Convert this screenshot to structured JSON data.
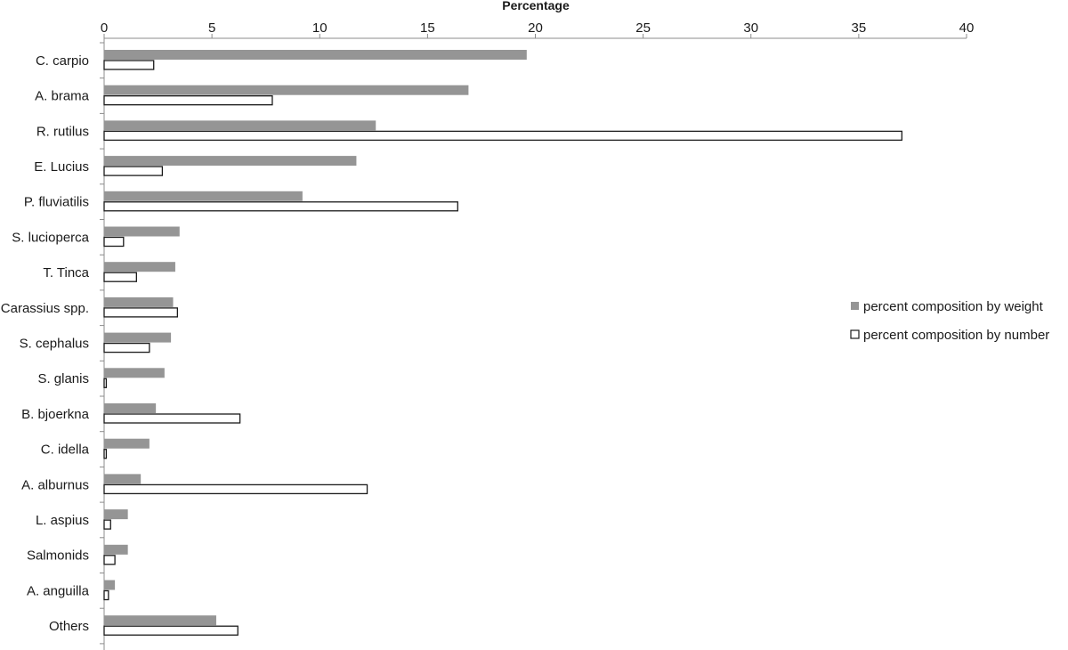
{
  "chart_data": {
    "type": "bar",
    "orientation": "horizontal",
    "title": "",
    "xlabel": "Percentage",
    "xlabel_position": "top",
    "ylabel": "",
    "xlim": [
      0,
      40
    ],
    "x_ticks": [
      0,
      5,
      10,
      15,
      20,
      25,
      30,
      35,
      40
    ],
    "grid": false,
    "legend_position": "right",
    "categories": [
      "C. carpio",
      "A. brama",
      "R. rutilus",
      "E. Lucius",
      "P. fluviatilis",
      "S. lucioperca",
      "T. Tinca",
      "Carassius spp.",
      "S. cephalus",
      "S. glanis",
      "B. bjoerkna",
      "C. idella",
      "A. alburnus",
      "L. aspius",
      "Salmonids",
      "A. anguilla",
      "Others"
    ],
    "series": [
      {
        "name": "percent composition by weight",
        "color": "#959595",
        "style": "filled",
        "values": [
          19.6,
          16.9,
          12.6,
          11.7,
          9.2,
          3.5,
          3.3,
          3.2,
          3.1,
          2.8,
          2.4,
          2.1,
          1.7,
          1.1,
          1.1,
          0.5,
          5.2
        ]
      },
      {
        "name": "percent composition by number",
        "color": "#ffffff",
        "style": "outline",
        "values": [
          2.3,
          7.8,
          37.0,
          2.7,
          16.4,
          0.9,
          1.5,
          3.4,
          2.1,
          0.1,
          6.3,
          0.1,
          12.2,
          0.3,
          0.5,
          0.2,
          6.2
        ]
      }
    ]
  }
}
